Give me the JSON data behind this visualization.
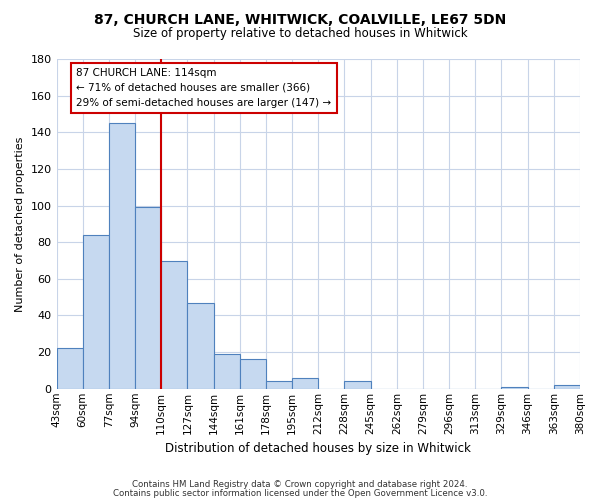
{
  "title": "87, CHURCH LANE, WHITWICK, COALVILLE, LE67 5DN",
  "subtitle": "Size of property relative to detached houses in Whitwick",
  "xlabel": "Distribution of detached houses by size in Whitwick",
  "ylabel": "Number of detached properties",
  "bin_labels": [
    "43sqm",
    "60sqm",
    "77sqm",
    "94sqm",
    "110sqm",
    "127sqm",
    "144sqm",
    "161sqm",
    "178sqm",
    "195sqm",
    "212sqm",
    "228sqm",
    "245sqm",
    "262sqm",
    "279sqm",
    "296sqm",
    "313sqm",
    "329sqm",
    "346sqm",
    "363sqm",
    "380sqm"
  ],
  "bar_values": [
    22,
    84,
    145,
    99,
    70,
    47,
    19,
    16,
    4,
    6,
    0,
    4,
    0,
    0,
    0,
    0,
    0,
    1,
    0,
    2
  ],
  "bar_color": "#c6d9f0",
  "bar_edge_color": "#4f81bd",
  "highlight_line_index": 4,
  "annotation_title": "87 CHURCH LANE: 114sqm",
  "annotation_line1": "← 71% of detached houses are smaller (366)",
  "annotation_line2": "29% of semi-detached houses are larger (147) →",
  "annotation_box_color": "#ffffff",
  "annotation_box_edge": "#cc0000",
  "highlight_line_color": "#cc0000",
  "ylim": [
    0,
    180
  ],
  "yticks": [
    0,
    20,
    40,
    60,
    80,
    100,
    120,
    140,
    160,
    180
  ],
  "footer1": "Contains HM Land Registry data © Crown copyright and database right 2024.",
  "footer2": "Contains public sector information licensed under the Open Government Licence v3.0."
}
